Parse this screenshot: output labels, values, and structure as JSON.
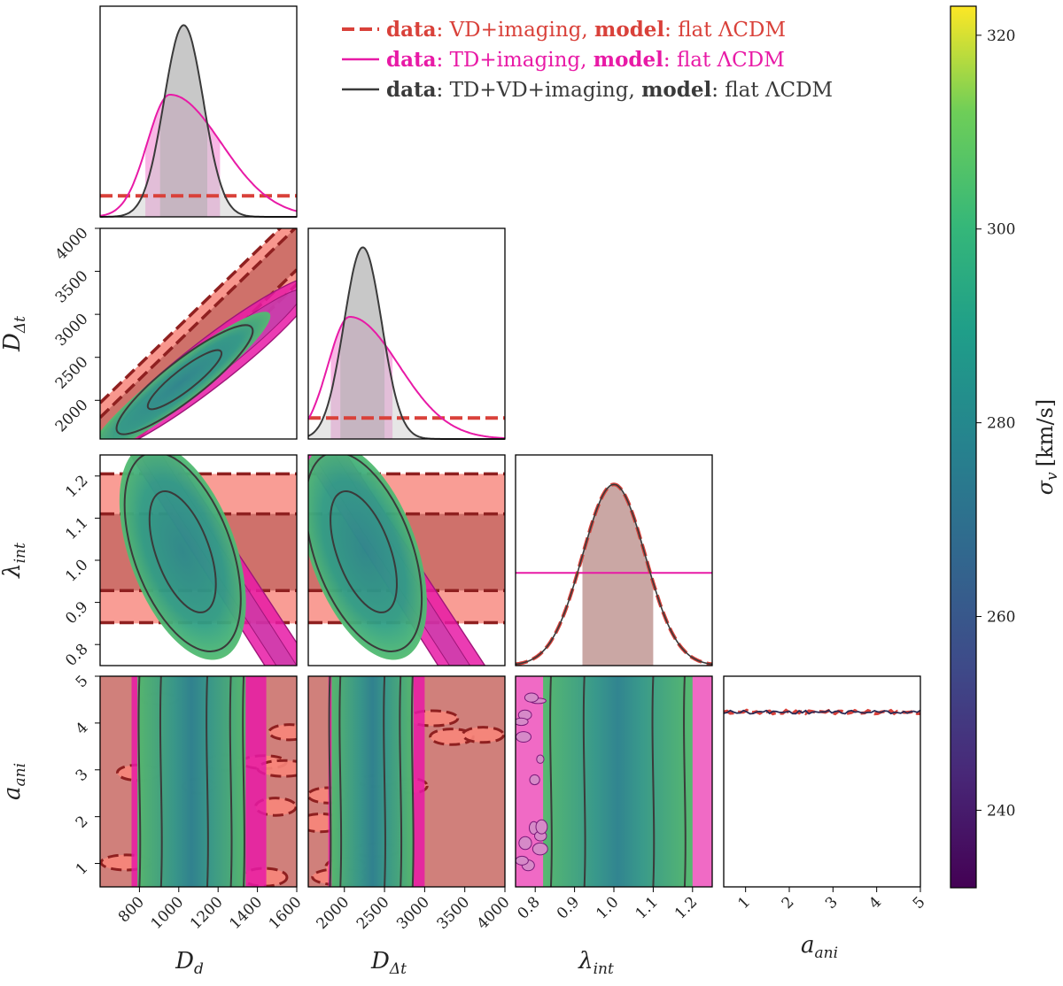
{
  "chart_data": {
    "type": "corner",
    "parameters": [
      {
        "key": "D_d",
        "label_main": "D",
        "label_sub": "d",
        "range": [
          600,
          1600
        ],
        "ticks": [
          800,
          1000,
          1200,
          1400,
          1600
        ]
      },
      {
        "key": "D_dt",
        "label_main": "D",
        "label_sub": "Δt",
        "range": [
          1550,
          4000
        ],
        "ticks": [
          2000,
          2500,
          3000,
          3500,
          4000
        ]
      },
      {
        "key": "lambda_int",
        "label_main": "λ",
        "label_sub": "int",
        "range": [
          0.75,
          1.25
        ],
        "ticks": [
          0.8,
          0.9,
          1.0,
          1.1,
          1.2
        ]
      },
      {
        "key": "a_ani",
        "label_main": "a",
        "label_sub": "ani",
        "range": [
          0.5,
          5.0
        ],
        "ticks": [
          1,
          2,
          3,
          4,
          5
        ]
      }
    ],
    "legend": [
      {
        "color": "#d9413a",
        "style": "dashed",
        "data_bold": "data",
        "data_text": ": VD+imaging, ",
        "model_bold": "model",
        "model_text": ": flat ΛCDM"
      },
      {
        "color": "#e81aa6",
        "style": "solid",
        "data_bold": "data",
        "data_text": ": TD+imaging, ",
        "model_bold": "model",
        "model_text": ": flat ΛCDM"
      },
      {
        "color": "#3a3a3a",
        "style": "solid",
        "data_bold": "data",
        "data_text": ": TD+VD+imaging, ",
        "model_bold": "model",
        "model_text": ": flat ΛCDM"
      }
    ],
    "colorbar": {
      "label_main": "σ",
      "label_sub": "v",
      "label_unit": "[km/s]",
      "range": [
        232,
        323
      ],
      "ticks": [
        240,
        260,
        280,
        300,
        320
      ],
      "colormap": "viridis"
    },
    "marginals": {
      "D_d": {
        "TD+VD+imaging": {
          "mean": 1025,
          "sigma": 100,
          "interval": [
            905,
            1145
          ]
        },
        "TD+imaging": {
          "interval": [
            830,
            1210
          ]
        },
        "VD+imaging": "flat"
      },
      "D_dt": {
        "TD+VD+imaging": {
          "mean": 2230,
          "sigma": 235,
          "interval": [
            1950,
            2500
          ]
        },
        "TD+imaging": {
          "interval": [
            1830,
            2600
          ]
        },
        "VD+imaging": "flat"
      },
      "lambda_int": {
        "TD+VD+imaging": {
          "mean": 1.0,
          "sigma": 0.08,
          "interval": [
            0.92,
            1.1
          ]
        },
        "VD+imaging": {
          "mean": 1.0,
          "sigma": 0.08
        },
        "TD+imaging": "flat"
      },
      "a_ani": {
        "all": "flat"
      }
    }
  },
  "colors": {
    "vd": "#d9413a",
    "vd_fill": "#f7857a",
    "td": "#e81aa6",
    "td_fill": "#f27cd0",
    "tdvd": "#3a3a3a",
    "dark_dash": "#8f2020"
  }
}
